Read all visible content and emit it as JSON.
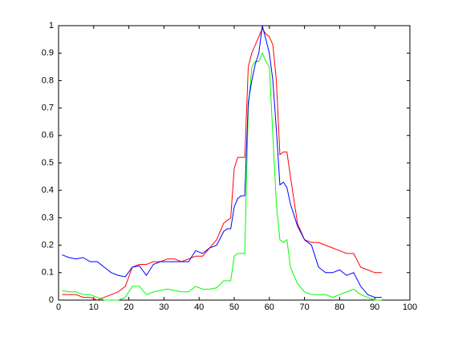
{
  "chart_data": {
    "type": "line",
    "x": [
      1,
      3,
      5,
      7,
      9,
      11,
      13,
      15,
      17,
      19,
      21,
      23,
      25,
      27,
      29,
      31,
      33,
      35,
      37,
      39,
      41,
      43,
      45,
      47,
      48,
      49,
      50,
      51,
      52,
      53,
      54,
      55,
      56,
      57,
      58,
      59,
      60,
      61,
      62,
      63,
      64,
      65,
      66,
      68,
      70,
      72,
      74,
      76,
      78,
      80,
      82,
      84,
      86,
      88,
      90,
      92
    ],
    "series": [
      {
        "color": "#ff0000",
        "values": [
          0.02,
          0.02,
          0.02,
          0.01,
          0.01,
          0.0,
          0.01,
          0.02,
          0.03,
          0.05,
          0.12,
          0.13,
          0.13,
          0.14,
          0.14,
          0.15,
          0.15,
          0.14,
          0.15,
          0.16,
          0.16,
          0.19,
          0.22,
          0.28,
          0.29,
          0.3,
          0.48,
          0.52,
          0.52,
          0.52,
          0.85,
          0.9,
          0.93,
          0.96,
          0.99,
          0.97,
          0.96,
          0.93,
          0.8,
          0.53,
          0.54,
          0.54,
          0.45,
          0.28,
          0.22,
          0.21,
          0.21,
          0.2,
          0.19,
          0.18,
          0.17,
          0.17,
          0.12,
          0.11,
          0.1,
          0.1
        ]
      },
      {
        "color": "#00ff00",
        "values": [
          0.035,
          0.03,
          0.03,
          0.02,
          0.02,
          0.01,
          0.0,
          0.0,
          0.0,
          0.01,
          0.05,
          0.05,
          0.02,
          0.03,
          0.035,
          0.04,
          0.035,
          0.03,
          0.03,
          0.05,
          0.04,
          0.04,
          0.045,
          0.07,
          0.07,
          0.07,
          0.16,
          0.17,
          0.17,
          0.17,
          0.7,
          0.85,
          0.87,
          0.87,
          0.9,
          0.87,
          0.85,
          0.6,
          0.35,
          0.22,
          0.21,
          0.22,
          0.12,
          0.06,
          0.03,
          0.02,
          0.02,
          0.02,
          0.01,
          0.02,
          0.03,
          0.04,
          0.02,
          0.01,
          0.0,
          0.0
        ]
      },
      {
        "color": "#0000ff",
        "values": [
          0.165,
          0.155,
          0.15,
          0.155,
          0.14,
          0.14,
          0.12,
          0.1,
          0.09,
          0.085,
          0.12,
          0.125,
          0.09,
          0.13,
          0.14,
          0.14,
          0.14,
          0.14,
          0.14,
          0.18,
          0.17,
          0.19,
          0.2,
          0.25,
          0.26,
          0.26,
          0.34,
          0.37,
          0.38,
          0.38,
          0.72,
          0.8,
          0.86,
          0.9,
          1.0,
          0.95,
          0.9,
          0.8,
          0.62,
          0.42,
          0.43,
          0.41,
          0.35,
          0.27,
          0.22,
          0.2,
          0.12,
          0.1,
          0.1,
          0.11,
          0.09,
          0.1,
          0.05,
          0.02,
          0.01,
          0.01
        ]
      }
    ],
    "xlim": [
      0,
      100
    ],
    "xticks": [
      0,
      10,
      20,
      30,
      40,
      50,
      60,
      70,
      80,
      90,
      100
    ],
    "ylim": [
      0,
      1
    ],
    "yticks": [
      0,
      0.1,
      0.2,
      0.3,
      0.4,
      0.5,
      0.6,
      0.7,
      0.8,
      0.9,
      1
    ],
    "grid": false
  }
}
